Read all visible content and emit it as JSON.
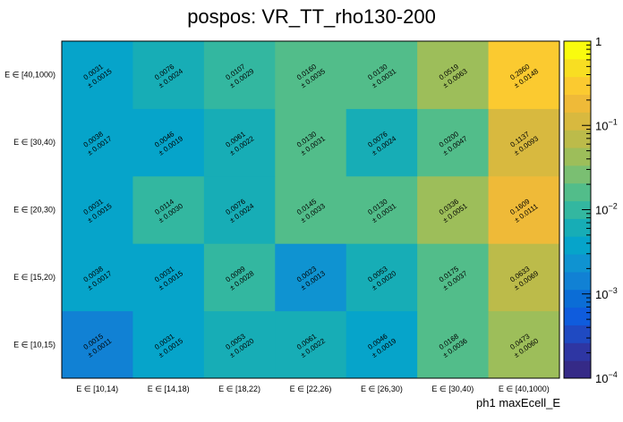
{
  "chart_data": {
    "type": "heatmap",
    "title": "pospos: VR_TT_rho130-200",
    "xlabel": "ph1 maxEcell_E",
    "ylabel": "",
    "x_categories": [
      "E ∈ [10,14)",
      "E ∈ [14,18)",
      "E ∈ [18,22)",
      "E ∈ [22,26)",
      "E ∈ [26,30)",
      "E ∈ [30,40)",
      "E ∈ [40,1000)"
    ],
    "y_categories": [
      "E ∈ [10,15)",
      "E ∈ [15,20)",
      "E ∈ [20,30)",
      "E ∈ [30,40)",
      "E ∈ [40,1000)"
    ],
    "z_scale": "log",
    "z_range": [
      0.0001,
      1
    ],
    "colorbar_ticks": [
      {
        "value": 1,
        "base": "1",
        "exp": ""
      },
      {
        "value": 0.1,
        "base": "10",
        "exp": "−1"
      },
      {
        "value": 0.01,
        "base": "10",
        "exp": "−2"
      },
      {
        "value": 0.001,
        "base": "10",
        "exp": "−3"
      },
      {
        "value": 0.0001,
        "base": "10",
        "exp": "−4"
      }
    ],
    "cells": [
      [
        {
          "value": 0.0015,
          "label": "0.0015",
          "err": "± 0.0011"
        },
        {
          "value": 0.0031,
          "label": "0.0031",
          "err": "± 0.0015"
        },
        {
          "value": 0.0053,
          "label": "0.0053",
          "err": "± 0.0020"
        },
        {
          "value": 0.0061,
          "label": "0.0061",
          "err": "± 0.0022"
        },
        {
          "value": 0.0046,
          "label": "0.0046",
          "err": "± 0.0019"
        },
        {
          "value": 0.0168,
          "label": "0.0168",
          "err": "± 0.0036"
        },
        {
          "value": 0.0473,
          "label": "0.0473",
          "err": "± 0.0060"
        }
      ],
      [
        {
          "value": 0.0038,
          "label": "0.0038",
          "err": "± 0.0017"
        },
        {
          "value": 0.0031,
          "label": "0.0031",
          "err": "± 0.0015"
        },
        {
          "value": 0.0099,
          "label": "0.0099",
          "err": "± 0.0028"
        },
        {
          "value": 0.0023,
          "label": "0.0023",
          "err": "± 0.0013"
        },
        {
          "value": 0.0053,
          "label": "0.0053",
          "err": "± 0.0020"
        },
        {
          "value": 0.0175,
          "label": "0.0175",
          "err": "± 0.0037"
        },
        {
          "value": 0.0633,
          "label": "0.0633",
          "err": "± 0.0069"
        }
      ],
      [
        {
          "value": 0.0031,
          "label": "0.0031",
          "err": "± 0.0015"
        },
        {
          "value": 0.0114,
          "label": "0.0114",
          "err": "± 0.0030"
        },
        {
          "value": 0.0076,
          "label": "0.0076",
          "err": "± 0.0024"
        },
        {
          "value": 0.0145,
          "label": "0.0145",
          "err": "± 0.0033"
        },
        {
          "value": 0.013,
          "label": "0.0130",
          "err": "± 0.0031"
        },
        {
          "value": 0.0336,
          "label": "0.0336",
          "err": "± 0.0051"
        },
        {
          "value": 0.1609,
          "label": "0.1609",
          "err": "± 0.0111"
        }
      ],
      [
        {
          "value": 0.0038,
          "label": "0.0038",
          "err": "± 0.0017"
        },
        {
          "value": 0.0046,
          "label": "0.0046",
          "err": "± 0.0019"
        },
        {
          "value": 0.0061,
          "label": "0.0061",
          "err": "± 0.0022"
        },
        {
          "value": 0.013,
          "label": "0.0130",
          "err": "± 0.0031"
        },
        {
          "value": 0.0076,
          "label": "0.0076",
          "err": "± 0.0024"
        },
        {
          "value": 0.02,
          "label": "0.0200",
          "err": "± 0.0047"
        },
        {
          "value": 0.1137,
          "label": "0.1137",
          "err": "± 0.0093"
        }
      ],
      [
        {
          "value": 0.0031,
          "label": "0.0031",
          "err": "± 0.0015"
        },
        {
          "value": 0.0076,
          "label": "0.0076",
          "err": "± 0.0024"
        },
        {
          "value": 0.0107,
          "label": "0.0107",
          "err": "± 0.0029"
        },
        {
          "value": 0.016,
          "label": "0.0160",
          "err": "± 0.0035"
        },
        {
          "value": 0.013,
          "label": "0.0130",
          "err": "± 0.0031"
        },
        {
          "value": 0.0519,
          "label": "0.0519",
          "err": "± 0.0063"
        },
        {
          "value": 0.286,
          "label": "0.2860",
          "err": "± 0.0148"
        }
      ]
    ],
    "palette": [
      "#352a87",
      "#2e36a3",
      "#1f4ac2",
      "#0f5cdd",
      "#0b6dd6",
      "#1181d4",
      "#0f93d1",
      "#06a4ca",
      "#17adb6",
      "#33b7a0",
      "#52bd8a",
      "#7abf72",
      "#9dbe5a",
      "#bcbb4a",
      "#d8b93f",
      "#efba38",
      "#fbca30",
      "#f8de22",
      "#f9fb0e"
    ]
  }
}
